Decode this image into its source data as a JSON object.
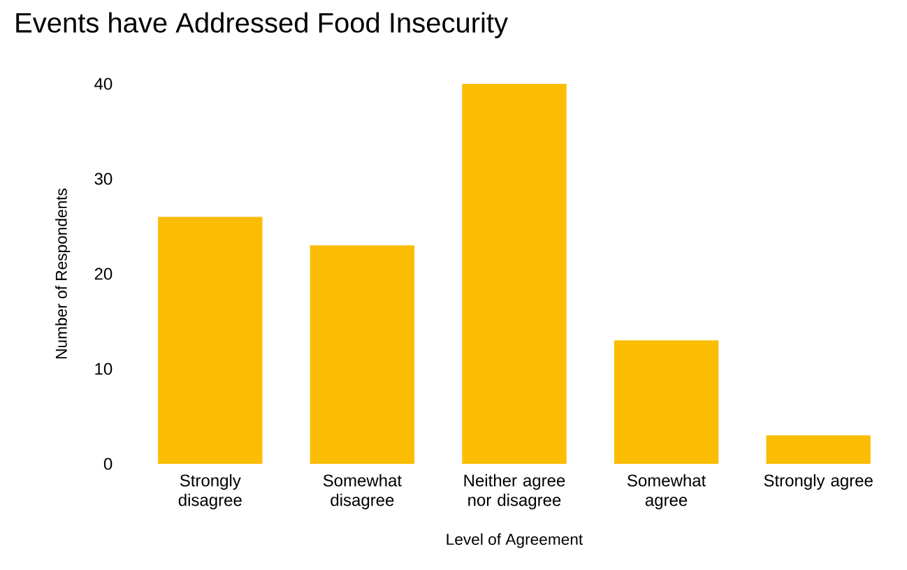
{
  "chart_data": {
    "type": "bar",
    "title": "Events have Addressed Food Insecurity",
    "xlabel": "Level of Agreement",
    "ylabel": "Number of Respondents",
    "categories": [
      "Strongly disagree",
      "Somewhat disagree",
      "Neither agree nor disagree",
      "Somewhat agree",
      "Strongly agree"
    ],
    "values": [
      26,
      23,
      40,
      13,
      3
    ],
    "color": "#fbbc04",
    "ylim": [
      0,
      40
    ],
    "yticks": [
      0,
      10,
      20,
      30,
      40
    ]
  }
}
